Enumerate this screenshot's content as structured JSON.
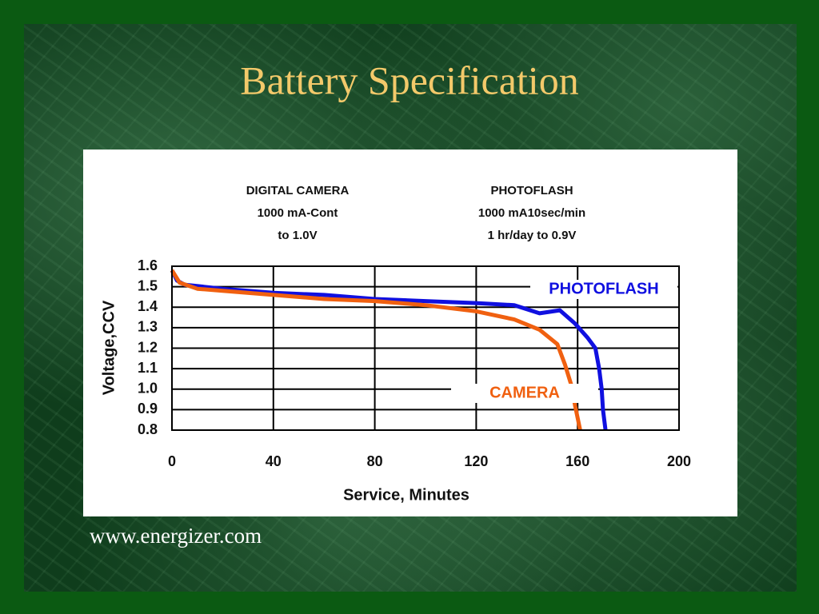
{
  "title": "Battery Specification",
  "footer": "www.energizer.com",
  "chart_data": {
    "type": "line",
    "annotations": [
      [
        "DIGITAL CAMERA",
        "1000 mA-Cont",
        "to 1.0V"
      ],
      [
        "PHOTOFLASH",
        "1000 mA10sec/min",
        "1 hr/day to 0.9V"
      ]
    ],
    "x_label": "Service, Minutes",
    "y_label": "Voltage,CCV",
    "series": [
      {
        "name": "PHOTOFLASH",
        "color": "#1010e0",
        "x": [
          0,
          2,
          5,
          20,
          40,
          60,
          80,
          100,
          120,
          135,
          145,
          153,
          159,
          164,
          167,
          168.5,
          169.5,
          170,
          171
        ],
        "values": [
          1.58,
          1.53,
          1.51,
          1.49,
          1.47,
          1.46,
          1.44,
          1.43,
          1.42,
          1.41,
          1.37,
          1.385,
          1.32,
          1.25,
          1.2,
          1.1,
          1.0,
          0.9,
          0.8
        ]
      },
      {
        "name": "CAMERA",
        "color": "#f06010",
        "x": [
          0,
          3,
          10,
          20,
          40,
          60,
          80,
          100,
          120,
          135,
          145,
          152,
          155,
          157.5,
          159,
          160,
          161
        ],
        "values": [
          1.58,
          1.52,
          1.49,
          1.48,
          1.46,
          1.44,
          1.43,
          1.41,
          1.38,
          1.34,
          1.29,
          1.22,
          1.12,
          1.02,
          0.92,
          0.86,
          0.8
        ]
      }
    ],
    "xlim": [
      0,
      200
    ],
    "ylim": [
      0.8,
      1.6
    ],
    "xticks": [
      0,
      40,
      80,
      120,
      160,
      200
    ],
    "yticks": [
      1.6,
      1.5,
      1.4,
      1.3,
      1.2,
      1.1,
      {
        "value": 1,
        "label": "1.0"
      },
      0.9,
      0.8
    ],
    "grid": true
  }
}
